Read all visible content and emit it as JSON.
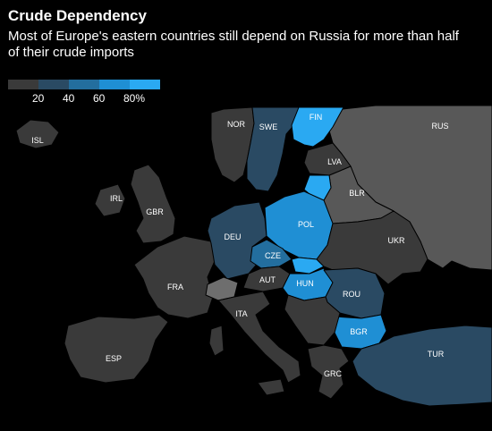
{
  "title": "Crude Dependency",
  "subtitle": "Most of Europe's eastern countries still depend on Russia for more than half of their crude imports",
  "legend": {
    "ticks": [
      "20",
      "40",
      "60",
      "80%"
    ],
    "colors": [
      "#3a3a3a",
      "#2a4a63",
      "#236e9e",
      "#1f8fd4",
      "#2aa9f2"
    ]
  },
  "colors": {
    "background": "#000000",
    "sea": "#000000",
    "no_data": "#3a3a3a",
    "outside": "#585858",
    "swiss": "#6e6e6e"
  },
  "countries": [
    {
      "code": "ISL",
      "label": "ISL",
      "bin": 0
    },
    {
      "code": "NOR",
      "label": "NOR",
      "bin": 0
    },
    {
      "code": "SWE",
      "label": "SWE",
      "bin": 1
    },
    {
      "code": "FIN",
      "label": "FIN",
      "bin": 4
    },
    {
      "code": "RUS",
      "label": "RUS",
      "bin": -1
    },
    {
      "code": "LVA",
      "label": "LVA",
      "bin": 0
    },
    {
      "code": "LTU",
      "label": "",
      "bin": 4
    },
    {
      "code": "BLR",
      "label": "BLR",
      "bin": -1
    },
    {
      "code": "IRL",
      "label": "IRL",
      "bin": 0
    },
    {
      "code": "GBR",
      "label": "GBR",
      "bin": 0
    },
    {
      "code": "DEU",
      "label": "DEU",
      "bin": 1
    },
    {
      "code": "POL",
      "label": "POL",
      "bin": 3
    },
    {
      "code": "UKR",
      "label": "UKR",
      "bin": 0
    },
    {
      "code": "CZE",
      "label": "CZE",
      "bin": 2
    },
    {
      "code": "SVK",
      "label": "",
      "bin": 4
    },
    {
      "code": "FRA",
      "label": "FRA",
      "bin": 0
    },
    {
      "code": "AUT",
      "label": "AUT",
      "bin": 0
    },
    {
      "code": "HUN",
      "label": "HUN",
      "bin": 3
    },
    {
      "code": "ROU",
      "label": "ROU",
      "bin": 1
    },
    {
      "code": "BGR",
      "label": "BGR",
      "bin": 3
    },
    {
      "code": "ITA",
      "label": "ITA",
      "bin": 0
    },
    {
      "code": "ESP",
      "label": "ESP",
      "bin": 0
    },
    {
      "code": "GRC",
      "label": "GRC",
      "bin": 0
    },
    {
      "code": "TUR",
      "label": "TUR",
      "bin": 1
    }
  ]
}
